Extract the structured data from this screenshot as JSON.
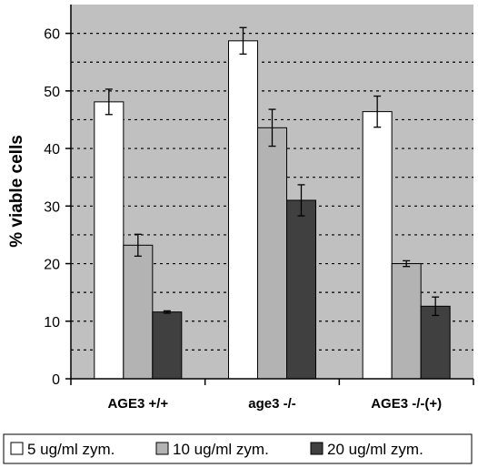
{
  "chart_data": {
    "type": "bar",
    "categories": [
      "AGE3 +/+",
      "age3 -/-",
      "AGE3 -/-(+)"
    ],
    "ylabel": "% viable cells",
    "xlabel": "",
    "title": "",
    "ylim": [
      0,
      65
    ],
    "yticks": [
      "0",
      "10",
      "20",
      "30",
      "40",
      "50",
      "60"
    ],
    "grid": "horizontal dotted lines every 5 units",
    "legend_position": "bottom",
    "plot_background": "#c0c0c0",
    "series": [
      {
        "name": "5 ug/ml zym.",
        "color": "#ffffff",
        "values": [
          48.1,
          58.7,
          46.4
        ],
        "errors": [
          2.2,
          2.3,
          2.7
        ]
      },
      {
        "name": "10 ug/ml zym.",
        "color": "#b3b3b3",
        "values": [
          23.2,
          43.6,
          20.0
        ],
        "errors": [
          1.9,
          3.2,
          0.5
        ]
      },
      {
        "name": "20 ug/ml zym.",
        "color": "#404040",
        "values": [
          11.6,
          31.0,
          12.6
        ],
        "errors": [
          0.2,
          2.7,
          1.6
        ]
      }
    ]
  }
}
